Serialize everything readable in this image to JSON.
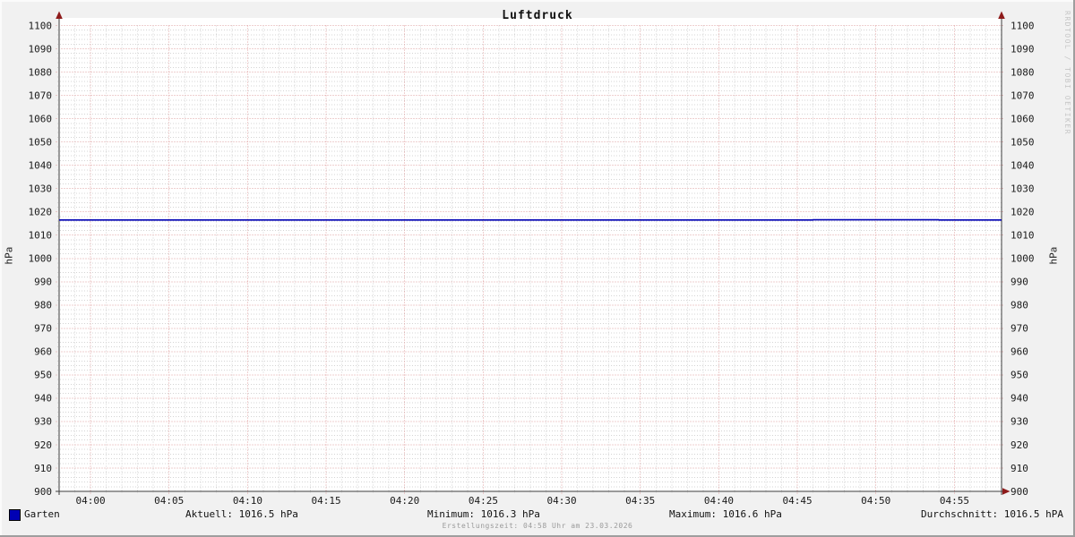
{
  "window": {
    "background": "#f1f1f1",
    "plot_background": "#ffffff"
  },
  "chart_data": {
    "type": "line",
    "title": "Luftdruck",
    "ylabel_left": "hPa",
    "ylabel_right": "hPa",
    "ylim": [
      900,
      1100
    ],
    "y_major_step": 10,
    "y_minor_step": 2,
    "y_tick_labels": [
      "900",
      "910",
      "920",
      "930",
      "940",
      "950",
      "960",
      "970",
      "980",
      "990",
      "1000",
      "1010",
      "1020",
      "1030",
      "1040",
      "1050",
      "1060",
      "1070",
      "1080",
      "1090",
      "1100"
    ],
    "x_minutes_range": [
      -2,
      58
    ],
    "x_minor_step_min": 1,
    "x_major_ticks": [
      {
        "t": 0,
        "label": "04:00"
      },
      {
        "t": 5,
        "label": "04:05"
      },
      {
        "t": 10,
        "label": "04:10"
      },
      {
        "t": 15,
        "label": "04:15"
      },
      {
        "t": 20,
        "label": "04:20"
      },
      {
        "t": 25,
        "label": "04:25"
      },
      {
        "t": 30,
        "label": "04:30"
      },
      {
        "t": 35,
        "label": "04:35"
      },
      {
        "t": 40,
        "label": "04:40"
      },
      {
        "t": 45,
        "label": "04:45"
      },
      {
        "t": 50,
        "label": "04:50"
      },
      {
        "t": 55,
        "label": "04:55"
      }
    ],
    "grid": {
      "major_color": "#dfa0a0",
      "minor_color": "#d4d4d4",
      "axis_color": "#3d3d3d",
      "arrow_color": "#8e1b1b",
      "tick_label_color": "#1a1a1a"
    },
    "series": [
      {
        "name": "Garten",
        "color": "#0000b4",
        "stats": {
          "current": 1016.5,
          "minimum": 1016.3,
          "maximum": 1016.6,
          "average": 1016.5,
          "unit": "hPa"
        },
        "points": [
          [
            -2,
            1016.5
          ],
          [
            46,
            1016.5
          ],
          [
            46,
            1016.6
          ],
          [
            54,
            1016.6
          ],
          [
            54,
            1016.5
          ],
          [
            58,
            1016.5
          ]
        ]
      }
    ]
  },
  "legend": {
    "series_label": "Garten",
    "aktuell": "Aktuell: 1016.5 hPa",
    "minimum": "Minimum: 1016.3 hPa",
    "maximum": "Maximum: 1016.6 hPa",
    "durchschnitt": "Durchschnitt: 1016.5 hPA"
  },
  "footer": {
    "text": "Erstellungszeit: 04:58 Uhr am 23.03.2026"
  },
  "watermark": {
    "text": "RRDTOOL / TOBI OETIKER"
  }
}
